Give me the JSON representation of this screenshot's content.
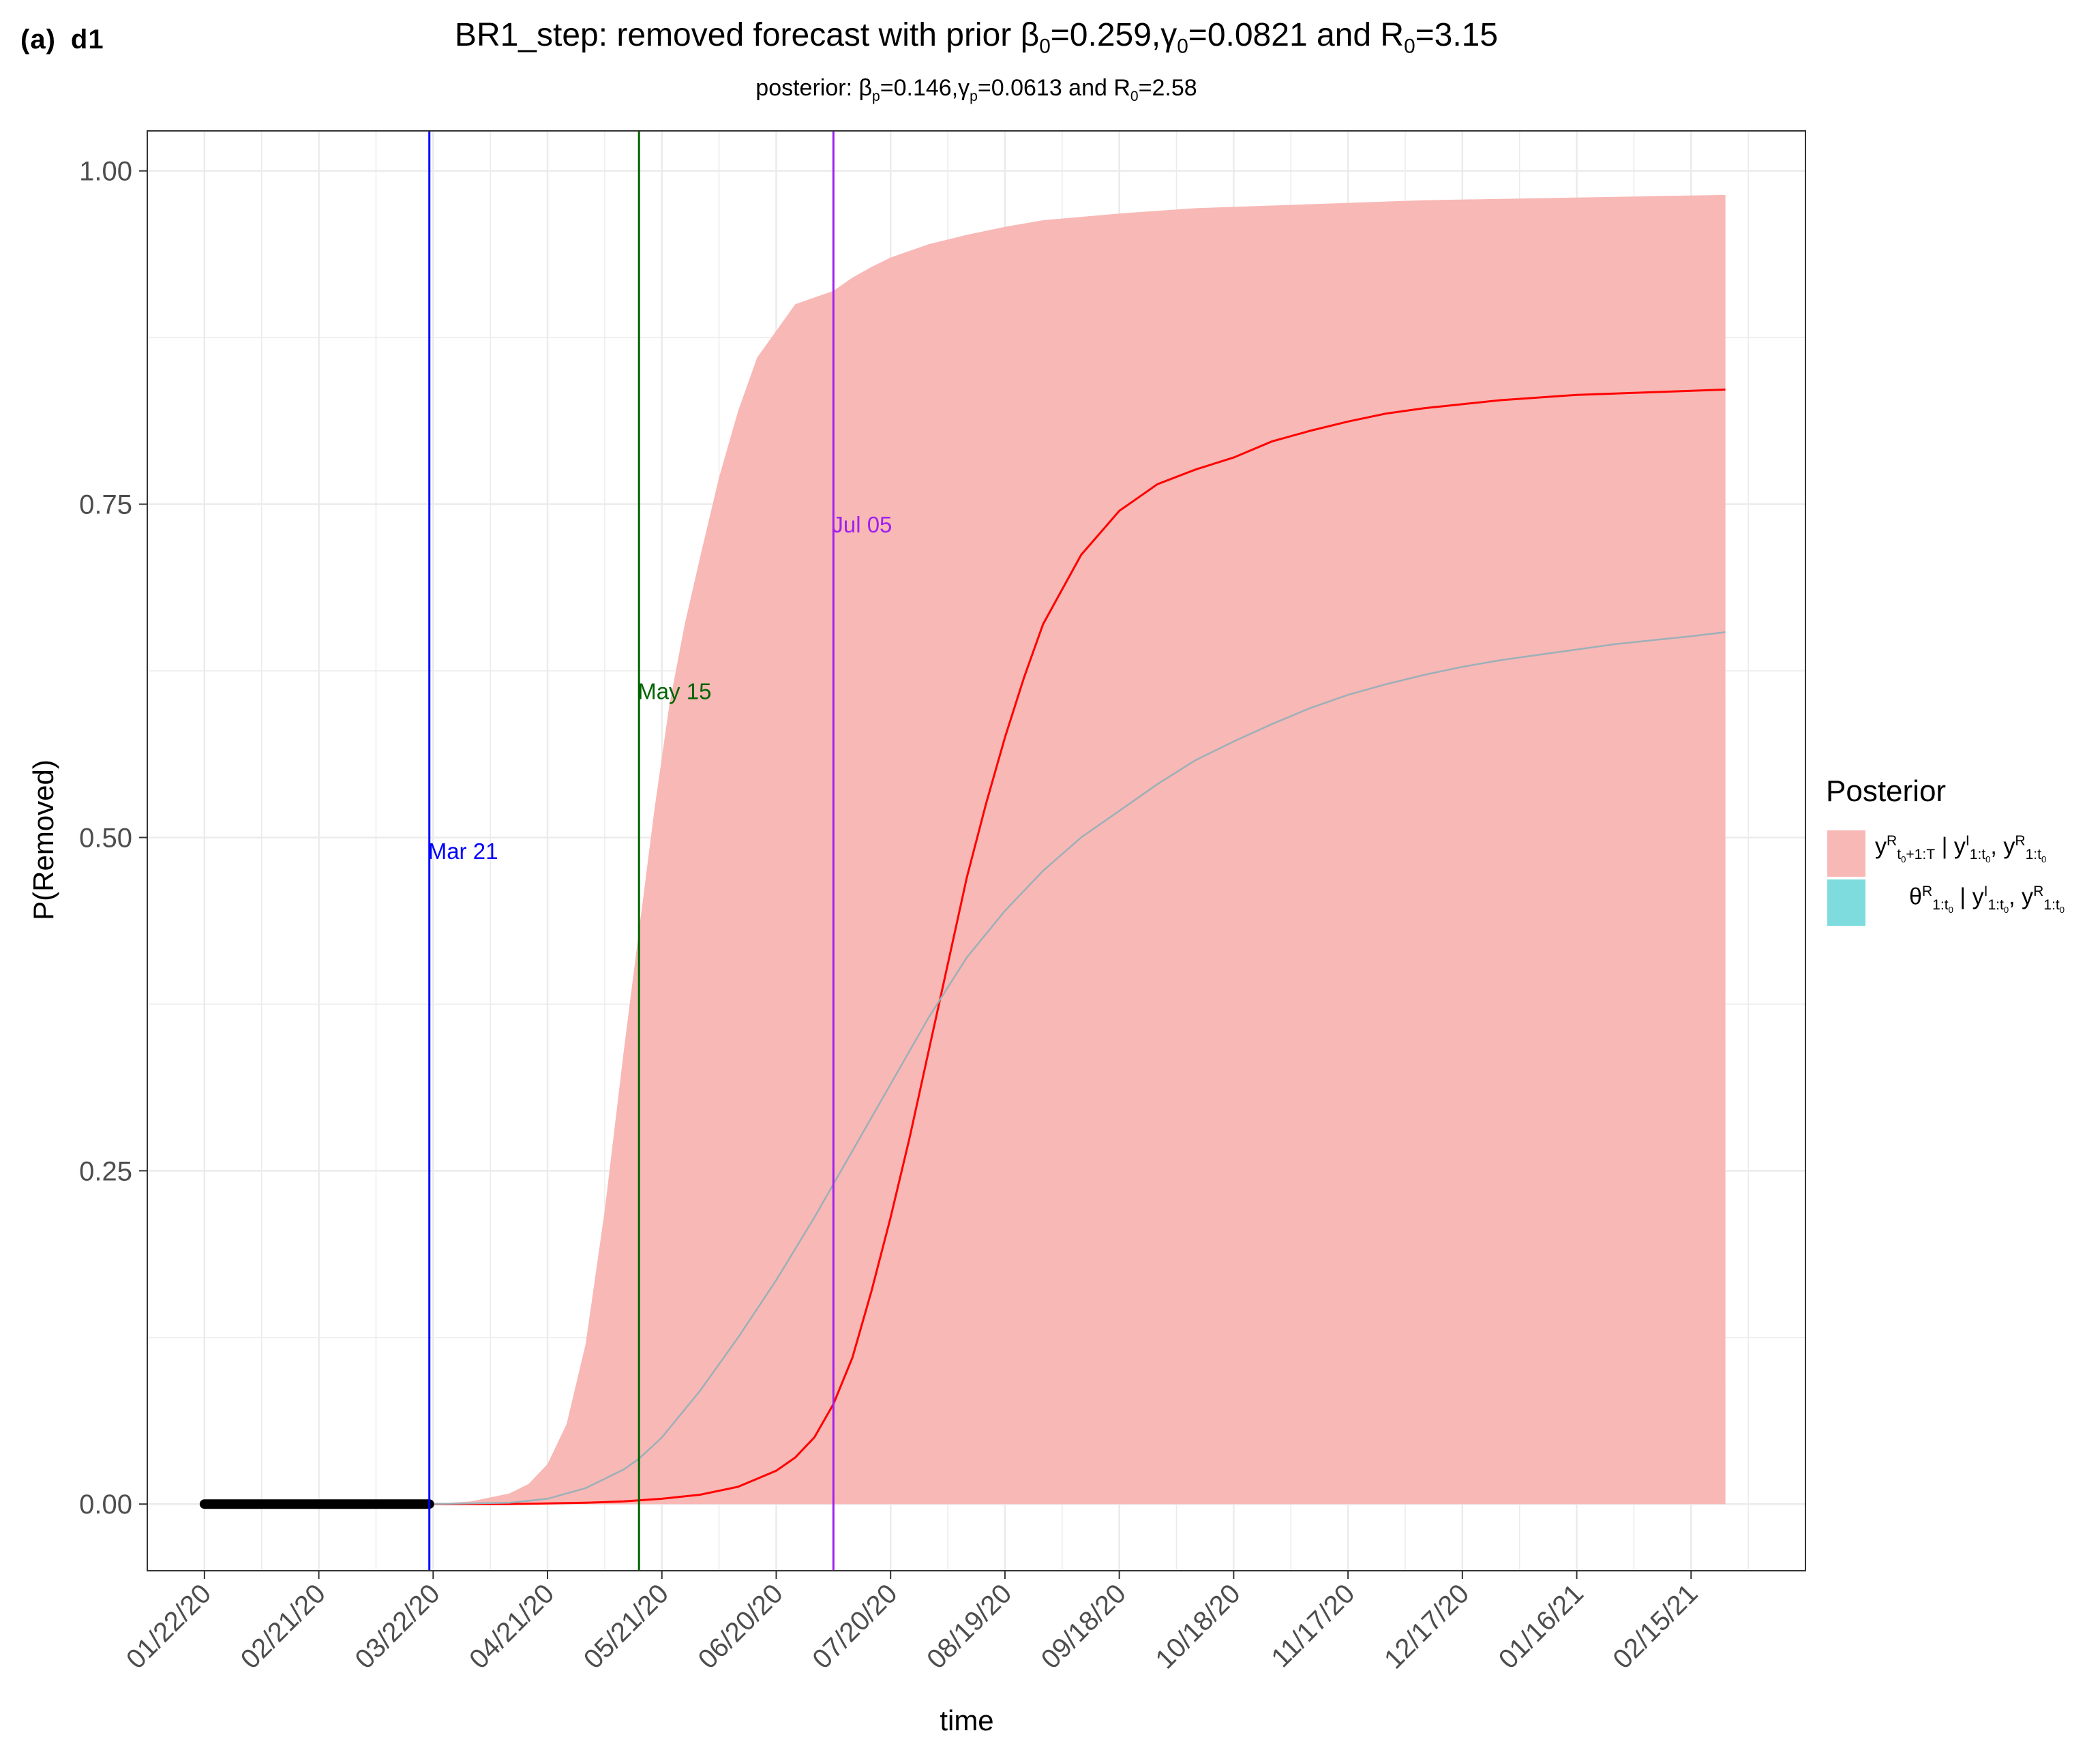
{
  "panel_label": {
    "letter": "(a)",
    "name": "d1"
  },
  "title": "BR1_step: removed forecast with prior β0=0.259,γ0=0.0821 and R0=3.15",
  "subtitle": "posterior: βp=0.146,γp=0.0613 and R0=2.58",
  "colors": {
    "band": "#F8B8B5",
    "median": "#FF0000",
    "prior": "#9BB0B8",
    "observed": "#000000",
    "vline_mar21": "#0000FF",
    "vline_may15": "#006400",
    "vline_jul05": "#A020F0",
    "legend_theta": "#7FDCDE",
    "grid": "#EBEBEB",
    "panel_border": "#333333"
  },
  "chart_data": {
    "type": "area",
    "title": "BR1_step: removed forecast with prior β0=0.259,γ0=0.0821 and R0=3.15",
    "subtitle": "posterior: βp=0.146,γp=0.0613 and R0=2.58",
    "xlabel": "time",
    "ylabel": "P(Removed)",
    "x_tick_labels": [
      "01/22/20",
      "02/21/20",
      "03/22/20",
      "04/21/20",
      "05/21/20",
      "06/20/20",
      "07/20/20",
      "08/19/20",
      "09/18/20",
      "10/18/20",
      "11/17/20",
      "12/17/20",
      "01/16/21",
      "02/15/21"
    ],
    "x_tick_days": [
      0,
      30,
      60,
      90,
      120,
      150,
      180,
      210,
      240,
      270,
      300,
      330,
      360,
      390
    ],
    "xlim_days": [
      -15,
      420
    ],
    "y_ticks": [
      0.0,
      0.25,
      0.5,
      0.75,
      1.0
    ],
    "y_tick_labels": [
      "0.00",
      "0.25",
      "0.50",
      "0.75",
      "1.00"
    ],
    "ylim": [
      -0.05,
      1.03
    ],
    "grid": true,
    "legend": {
      "title": "Posterior",
      "position": "right",
      "entries": [
        {
          "key": "band",
          "label": "y^R_{t0+1:T} | y^I_{1:t0}, y^R_{1:t0}"
        },
        {
          "key": "theta",
          "label": "θ^R_{1:t0} | y^I_{1:t0}, y^R_{1:t0}"
        }
      ]
    },
    "vertical_lines": [
      {
        "label": "Mar 21",
        "day": 59,
        "label_y": 0.49
      },
      {
        "label": "May 15",
        "day": 114,
        "label_y": 0.61
      },
      {
        "label": "Jul 05",
        "day": 165,
        "label_y": 0.735
      }
    ],
    "observed_segment": {
      "x_days": [
        0,
        59
      ],
      "y": 0.0
    },
    "band_upper": {
      "x_days": [
        59,
        70,
        80,
        85,
        90,
        95,
        100,
        105,
        110,
        114,
        118,
        122,
        126,
        130,
        135,
        140,
        145,
        150,
        155,
        160,
        165,
        170,
        175,
        180,
        190,
        200,
        210,
        220,
        240,
        260,
        280,
        300,
        320,
        340,
        360,
        380,
        399
      ],
      "y": [
        0.0,
        0.002,
        0.008,
        0.015,
        0.03,
        0.06,
        0.12,
        0.22,
        0.34,
        0.43,
        0.52,
        0.6,
        0.66,
        0.71,
        0.77,
        0.82,
        0.86,
        0.88,
        0.9,
        0.905,
        0.91,
        0.92,
        0.928,
        0.935,
        0.945,
        0.952,
        0.958,
        0.963,
        0.968,
        0.972,
        0.974,
        0.976,
        0.978,
        0.979,
        0.98,
        0.981,
        0.982
      ]
    },
    "series": [
      {
        "key": "median",
        "x_days": [
          59,
          80,
          100,
          110,
          120,
          130,
          140,
          150,
          155,
          160,
          165,
          170,
          175,
          180,
          185,
          190,
          195,
          200,
          205,
          210,
          215,
          220,
          230,
          240,
          250,
          260,
          270,
          280,
          290,
          300,
          310,
          320,
          330,
          340,
          350,
          360,
          370,
          380,
          390,
          399
        ],
        "y": [
          0.0,
          0.0,
          0.001,
          0.002,
          0.004,
          0.007,
          0.013,
          0.025,
          0.035,
          0.05,
          0.075,
          0.11,
          0.16,
          0.215,
          0.275,
          0.34,
          0.405,
          0.47,
          0.525,
          0.575,
          0.62,
          0.66,
          0.712,
          0.745,
          0.765,
          0.776,
          0.785,
          0.797,
          0.805,
          0.812,
          0.818,
          0.822,
          0.825,
          0.828,
          0.83,
          0.832,
          0.833,
          0.834,
          0.835,
          0.836
        ]
      },
      {
        "key": "prior",
        "x_days": [
          59,
          80,
          90,
          100,
          110,
          114,
          120,
          130,
          140,
          150,
          160,
          165,
          170,
          180,
          190,
          200,
          210,
          220,
          230,
          240,
          250,
          260,
          270,
          280,
          290,
          300,
          310,
          320,
          330,
          340,
          350,
          360,
          370,
          380,
          390,
          399
        ],
        "y": [
          0.0,
          0.001,
          0.004,
          0.012,
          0.026,
          0.034,
          0.05,
          0.085,
          0.125,
          0.168,
          0.215,
          0.24,
          0.265,
          0.315,
          0.365,
          0.41,
          0.445,
          0.475,
          0.5,
          0.52,
          0.54,
          0.558,
          0.572,
          0.585,
          0.597,
          0.607,
          0.615,
          0.622,
          0.628,
          0.633,
          0.637,
          0.641,
          0.645,
          0.648,
          0.651,
          0.654
        ]
      }
    ]
  }
}
